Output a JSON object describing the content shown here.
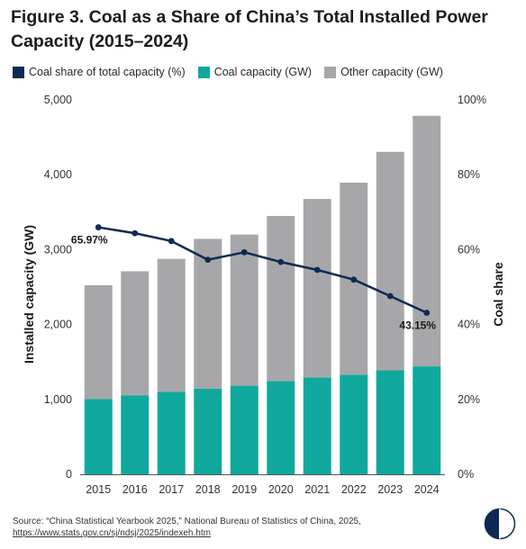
{
  "title": "Figure 3. Coal as a Share of China’s Total Installed Power Capacity (2015–2024)",
  "source_text": "Source: “China Statistical Yearbook 2025,” National Bureau of Statistics of China, 2025,",
  "source_link": "https://www.stats.gov.cn/sj/ndsj/2025/indexeh.htm",
  "colors": {
    "coal_share": "#0d2b52",
    "coal_capacity": "#10a89c",
    "other_capacity": "#a7a7aa",
    "logo_dark": "#0d2b52"
  },
  "icons": {
    "logo": "half-circle-logo-icon"
  },
  "chart_data": {
    "type": "bar",
    "stacked": true,
    "categories": [
      "2015",
      "2016",
      "2017",
      "2018",
      "2019",
      "2020",
      "2021",
      "2022",
      "2023",
      "2024"
    ],
    "series": [
      {
        "name": "Coal capacity (GW)",
        "kind": "bar",
        "axis": "left",
        "values": [
          1005,
          1056,
          1103,
          1143,
          1183,
          1245,
          1294,
          1331,
          1388,
          1441
        ]
      },
      {
        "name": "Other capacity (GW)",
        "kind": "bar",
        "axis": "left",
        "values": [
          1520,
          1655,
          1774,
          2001,
          2018,
          2205,
          2383,
          2563,
          2918,
          3347
        ]
      },
      {
        "name": "Coal share of total capacity (%)",
        "kind": "line",
        "axis": "right",
        "values": [
          65.97,
          64.4,
          62.3,
          57.3,
          59.3,
          56.7,
          54.6,
          52.0,
          47.6,
          43.15
        ]
      }
    ],
    "legend_order": [
      "Coal share of total capacity (%)",
      "Coal capacity (GW)",
      "Other capacity (GW)"
    ],
    "annotations": [
      {
        "category": "2015",
        "text": "65.97%"
      },
      {
        "category": "2024",
        "text": "43.15%"
      }
    ],
    "ylabel": "Installed capacity (GW)",
    "y2label": "Coal share",
    "ylim": [
      0,
      5000
    ],
    "y2lim": [
      0,
      100
    ],
    "yticks": [
      "0",
      "1,000",
      "2,000",
      "3,000",
      "4,000",
      "5,000"
    ],
    "y2ticks": [
      "0%",
      "20%",
      "40%",
      "60%",
      "80%",
      "100%"
    ],
    "grid": false,
    "legend_position": "top-left"
  }
}
